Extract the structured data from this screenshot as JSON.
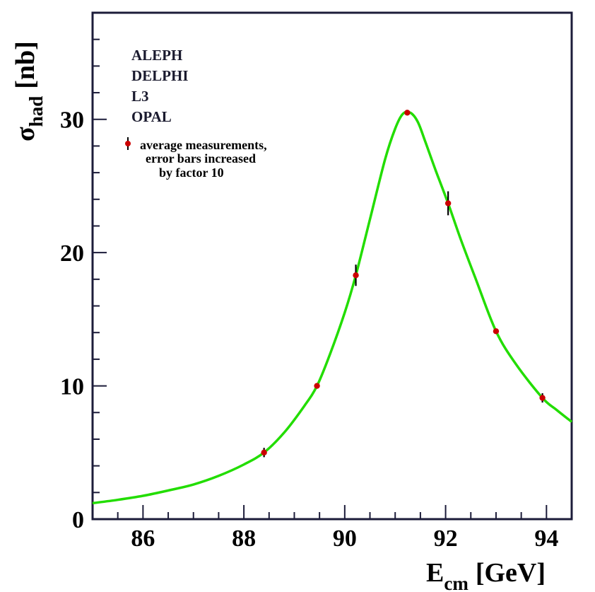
{
  "chart_data": {
    "type": "scatter",
    "title": "",
    "xlabel": {
      "main": "E",
      "sub": "cm",
      "unit": "[GeV]"
    },
    "ylabel": {
      "main": "σ",
      "sub": "had",
      "unit": "[nb]"
    },
    "xlim": [
      85.0,
      94.5
    ],
    "ylim": [
      0,
      38
    ],
    "x_ticks": [
      86,
      88,
      90,
      92,
      94
    ],
    "x_tick_labels": [
      "86",
      "88",
      "90",
      "92",
      "94"
    ],
    "y_ticks": [
      0,
      10,
      20,
      30
    ],
    "y_tick_labels": [
      "0",
      "10",
      "20",
      "30"
    ],
    "grid": false,
    "experiments": [
      "ALEPH",
      "DELPHI",
      "L3",
      "OPAL"
    ],
    "legend": {
      "position": "top-left",
      "entry_lines": [
        "average measurements,",
        "error bars increased",
        "by factor 10"
      ]
    },
    "series": [
      {
        "kind": "points",
        "color": "#cc0000",
        "x": [
          88.4,
          89.45,
          90.22,
          91.24,
          92.05,
          93.0,
          93.92
        ],
        "y": [
          5.0,
          10.0,
          18.3,
          30.5,
          23.7,
          14.1,
          9.1
        ],
        "yerr": [
          0.35,
          0.15,
          0.8,
          0.12,
          0.9,
          0.15,
          0.35
        ]
      },
      {
        "kind": "curve",
        "color": "#22dd00",
        "x": [
          85.0,
          85.5,
          86.0,
          86.5,
          87.0,
          87.5,
          88.0,
          88.4,
          88.8,
          89.2,
          89.45,
          89.7,
          90.0,
          90.22,
          90.5,
          90.8,
          91.0,
          91.15,
          91.3,
          91.45,
          91.6,
          91.8,
          92.05,
          92.3,
          92.6,
          93.0,
          93.4,
          93.92,
          94.2,
          94.5
        ],
        "y": [
          1.2,
          1.45,
          1.75,
          2.15,
          2.6,
          3.25,
          4.1,
          5.0,
          6.5,
          8.5,
          10.0,
          12.3,
          15.5,
          18.3,
          22.5,
          27.0,
          29.3,
          30.4,
          30.5,
          29.8,
          28.3,
          26.2,
          23.7,
          21.0,
          18.0,
          14.1,
          11.6,
          9.1,
          8.2,
          7.3
        ]
      }
    ]
  }
}
